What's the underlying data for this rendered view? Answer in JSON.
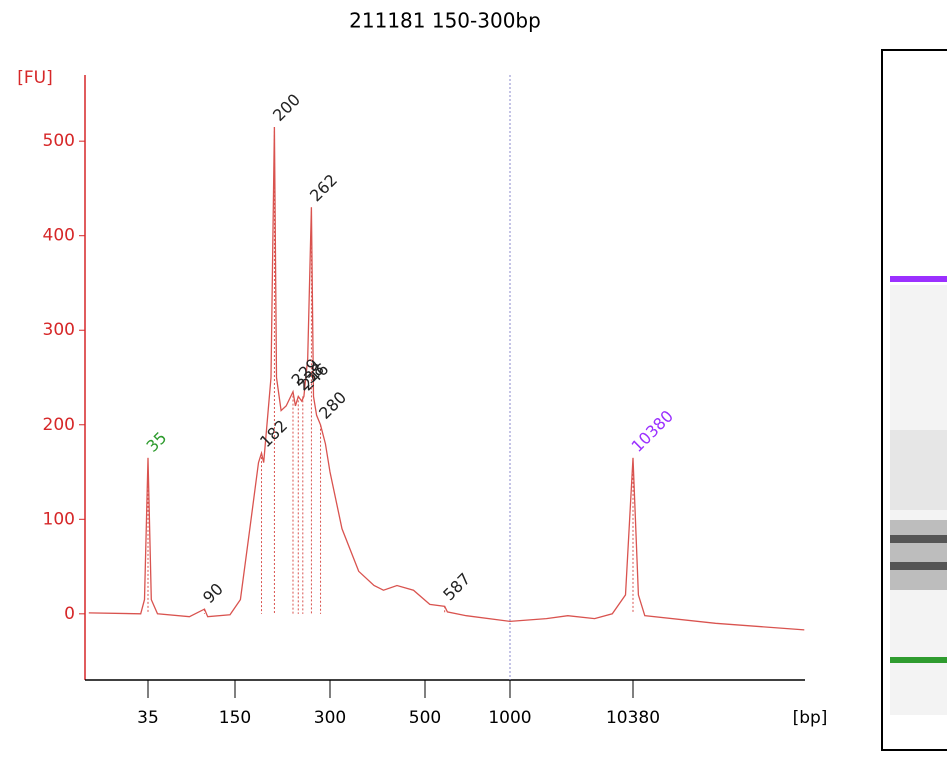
{
  "chart_data": {
    "type": "line",
    "title": "211181 150-300bp",
    "y_label": "[FU]",
    "x_label": "[bp]",
    "log_x": true,
    "color": "#d9534f",
    "axis_color": "#d62728",
    "xlim": [
      13,
      270000
    ],
    "ylim": [
      -70,
      570
    ],
    "xticks": [
      35,
      150,
      300,
      500,
      1000,
      10380
    ],
    "yticks": [
      0,
      100,
      200,
      300,
      400,
      500
    ],
    "series": [
      {
        "name": "211181 150-300bp",
        "color": "#d9534f",
        "x": [
          13,
          31,
          33,
          35,
          37,
          41,
          70,
          90,
          95,
          138,
          156,
          167,
          178,
          182,
          185,
          195,
          200,
          203,
          210,
          218,
          229,
          233,
          238,
          244,
          248,
          255,
          262,
          266,
          272,
          280,
          290,
          300,
          320,
          350,
          380,
          400,
          430,
          470,
          520,
          587,
          600,
          700,
          1000,
          2000,
          3000,
          5000,
          7000,
          9000,
          10380,
          11500,
          13000,
          50000,
          270000
        ],
        "values": [
          1,
          0,
          15,
          165,
          15,
          0,
          -3,
          5,
          -3,
          -1,
          15,
          89,
          160,
          170,
          160,
          250,
          515,
          250,
          215,
          220,
          235,
          220,
          230,
          225,
          230,
          270,
          430,
          230,
          210,
          200,
          180,
          150,
          90,
          45,
          30,
          25,
          30,
          25,
          10,
          8,
          2,
          -2,
          -8,
          -5,
          -2,
          -5,
          0,
          20,
          165,
          20,
          -2,
          -10,
          -17
        ]
      }
    ],
    "peaks": [
      {
        "bp": 35,
        "fu": 165,
        "color": "#2e9b2e"
      },
      {
        "bp": 90,
        "fu": 5,
        "color": "#222222"
      },
      {
        "bp": 182,
        "fu": 170,
        "color": "#222222"
      },
      {
        "bp": 200,
        "fu": 515,
        "color": "#222222"
      },
      {
        "bp": 229,
        "fu": 235,
        "color": "#222222"
      },
      {
        "bp": 238,
        "fu": 230,
        "color": "#222222"
      },
      {
        "bp": 246,
        "fu": 230,
        "color": "#222222"
      },
      {
        "bp": 262,
        "fu": 430,
        "color": "#222222"
      },
      {
        "bp": 280,
        "fu": 200,
        "color": "#222222"
      },
      {
        "bp": 587,
        "fu": 8,
        "color": "#222222"
      },
      {
        "bp": 10380,
        "fu": 165,
        "color": "#9b30ff"
      }
    ]
  }
}
